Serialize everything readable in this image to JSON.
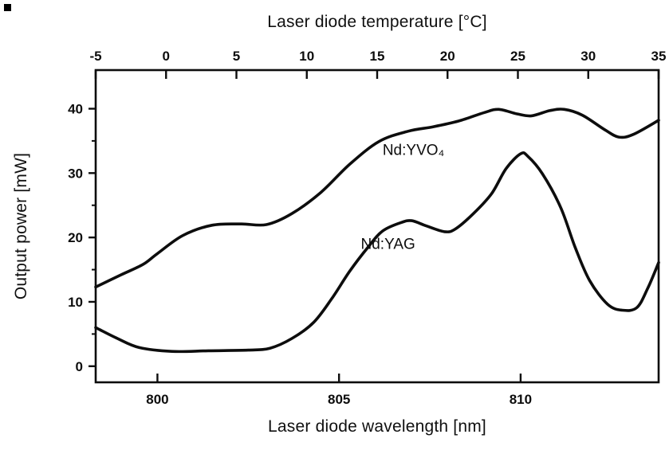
{
  "page": {
    "background": "#ffffff"
  },
  "chart_data": {
    "type": "line",
    "title": "",
    "grid": false,
    "legend": "inline-annotations",
    "line_color": "#0d0d0d",
    "top_axis": {
      "label": "Laser diode temperature [°C]",
      "ticks": [
        -5,
        0,
        5,
        10,
        15,
        20,
        25,
        30,
        35
      ],
      "range": [
        -5,
        35
      ]
    },
    "x_axis": {
      "label": "Laser diode wavelength [nm]",
      "ticks": [
        800,
        805,
        810
      ],
      "range": [
        798.3,
        813.8
      ]
    },
    "y_axis": {
      "label": "Output power [mW]",
      "ticks": [
        0,
        10,
        20,
        30,
        40
      ],
      "minor_ticks": [
        5,
        15,
        25,
        35
      ],
      "range": [
        -2.5,
        46
      ]
    },
    "series": [
      {
        "name": "Nd-YVO4",
        "label": "Nd:YVO₄",
        "label_pos": {
          "x": 806.2,
          "y": 32.8
        },
        "points": [
          [
            798.3,
            12.3
          ],
          [
            799.0,
            14.2
          ],
          [
            799.6,
            15.8
          ],
          [
            800.0,
            17.5
          ],
          [
            800.7,
            20.3
          ],
          [
            801.5,
            21.9
          ],
          [
            802.3,
            22.1
          ],
          [
            803.0,
            22.0
          ],
          [
            803.7,
            23.7
          ],
          [
            804.5,
            27.0
          ],
          [
            805.3,
            31.4
          ],
          [
            806.1,
            34.9
          ],
          [
            806.9,
            36.5
          ],
          [
            807.6,
            37.2
          ],
          [
            808.3,
            38.1
          ],
          [
            809.0,
            39.4
          ],
          [
            809.4,
            39.9
          ],
          [
            809.9,
            39.2
          ],
          [
            810.3,
            38.9
          ],
          [
            810.8,
            39.7
          ],
          [
            811.2,
            39.9
          ],
          [
            811.7,
            39.0
          ],
          [
            812.3,
            36.8
          ],
          [
            812.7,
            35.6
          ],
          [
            813.1,
            36.0
          ],
          [
            813.8,
            38.2
          ]
        ]
      },
      {
        "name": "Nd-YAG",
        "label": "Nd:YAG",
        "label_pos": {
          "x": 805.6,
          "y": 18.2
        },
        "points": [
          [
            798.3,
            6.0
          ],
          [
            798.9,
            4.3
          ],
          [
            799.5,
            2.9
          ],
          [
            800.4,
            2.3
          ],
          [
            801.4,
            2.4
          ],
          [
            802.5,
            2.5
          ],
          [
            803.1,
            2.8
          ],
          [
            803.7,
            4.3
          ],
          [
            804.3,
            6.8
          ],
          [
            804.8,
            10.5
          ],
          [
            805.3,
            14.8
          ],
          [
            805.8,
            18.5
          ],
          [
            806.2,
            21.0
          ],
          [
            806.7,
            22.3
          ],
          [
            807.0,
            22.6
          ],
          [
            807.4,
            21.8
          ],
          [
            807.9,
            20.9
          ],
          [
            808.2,
            21.3
          ],
          [
            808.7,
            23.7
          ],
          [
            809.2,
            26.8
          ],
          [
            809.6,
            30.7
          ],
          [
            810.0,
            33.0
          ],
          [
            810.2,
            32.6
          ],
          [
            810.6,
            29.9
          ],
          [
            811.1,
            24.7
          ],
          [
            811.5,
            18.5
          ],
          [
            811.9,
            13.3
          ],
          [
            812.4,
            9.6
          ],
          [
            812.8,
            8.7
          ],
          [
            813.2,
            9.1
          ],
          [
            813.5,
            12.1
          ],
          [
            813.8,
            16.1
          ]
        ]
      }
    ]
  }
}
